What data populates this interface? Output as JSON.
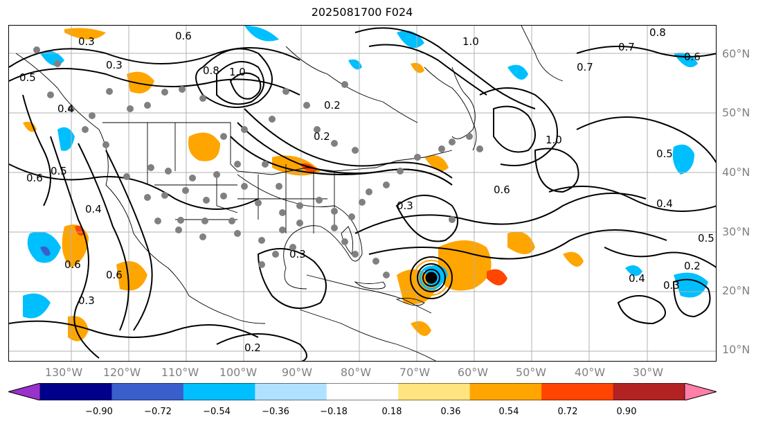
{
  "title": "2025081700 F024",
  "lat_labels": [
    "60°N",
    "50°N",
    "40°N",
    "30°N",
    "20°N",
    "10°N"
  ],
  "lon_labels": [
    "130°W",
    "120°W",
    "110°W",
    "100°W",
    "90°W",
    "80°W",
    "70°W",
    "60°W",
    "50°W",
    "40°W",
    "30°W"
  ],
  "contour_labels": [
    "0.5",
    "0.3",
    "0.6",
    "0.8",
    "1.0",
    "0.4",
    "0.2",
    "1.0",
    "0.7",
    "0.6",
    "0.8",
    "0.7",
    "0.5",
    "0.6",
    "0.5",
    "0.4",
    "0.6",
    "0.6",
    "0.3",
    "0.2",
    "0.3",
    "0.4",
    "0.5",
    "0.3",
    "0.2",
    "0.3",
    "1.0",
    "0.4",
    "0.2",
    "0.6",
    "0.3"
  ],
  "colorbar": {
    "ticks": [
      "−0.90",
      "−0.72",
      "−0.54",
      "−0.36",
      "−0.18",
      "0.18",
      "0.36",
      "0.54",
      "0.72",
      "0.90"
    ],
    "colors": [
      "#9932cc",
      "#00008b",
      "#3a5fcd",
      "#00bfff",
      "#b0e2ff",
      "#ffffff",
      "#ffe47f",
      "#ffa500",
      "#ff4500",
      "#b22222",
      "#ff7fa8"
    ]
  }
}
